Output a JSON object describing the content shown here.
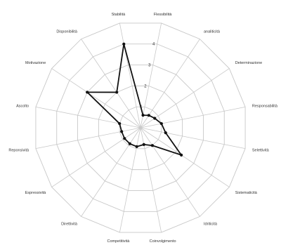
{
  "chart_data": {
    "type": "radar",
    "categories": [
      "Flessibilità",
      "analiticità",
      "Determinazione",
      "Responsabilità",
      "Selettività",
      "Sistematicità",
      "Idriticità",
      "Coinvolgimento",
      "Competitività",
      "Direttività",
      "Espressività",
      "Reponsività",
      "Ascolto",
      "Motivazione",
      "Disponibilità",
      "Stabilità"
    ],
    "series": [
      {
        "values": [
          0.6,
          0.7,
          0.8,
          1.0,
          1.2,
          2.3,
          1.0,
          0.8,
          0.9,
          0.9,
          0.9,
          0.9,
          1.0,
          3.0,
          2.0,
          4.0
        ]
      }
    ],
    "r_ticks": [
      1,
      2,
      3,
      4
    ],
    "rlim": [
      0,
      5
    ],
    "grid": true,
    "grid_shape": "polygon",
    "legend": "none"
  }
}
